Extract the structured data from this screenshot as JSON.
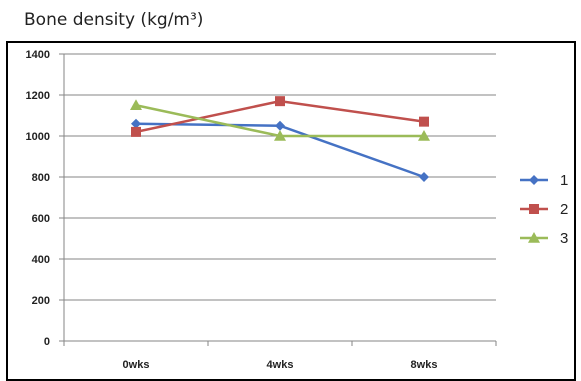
{
  "chart_data": {
    "type": "line",
    "title": "Bone density (kg/m³)",
    "xlabel": "",
    "ylabel": "",
    "categories": [
      "0wks",
      "4wks",
      "8wks"
    ],
    "ylim": [
      0,
      1400
    ],
    "yticks": [
      0,
      200,
      400,
      600,
      800,
      1000,
      1200,
      1400
    ],
    "grid": true,
    "legend_position": "right",
    "series": [
      {
        "name": "1",
        "values": [
          1060,
          1050,
          800
        ],
        "color": "#4572c4",
        "marker": "diamond"
      },
      {
        "name": "2",
        "values": [
          1020,
          1170,
          1070
        ],
        "color": "#c0504d",
        "marker": "square"
      },
      {
        "name": "3",
        "values": [
          1150,
          1000,
          1000
        ],
        "color": "#9bbb59",
        "marker": "triangle"
      }
    ]
  }
}
